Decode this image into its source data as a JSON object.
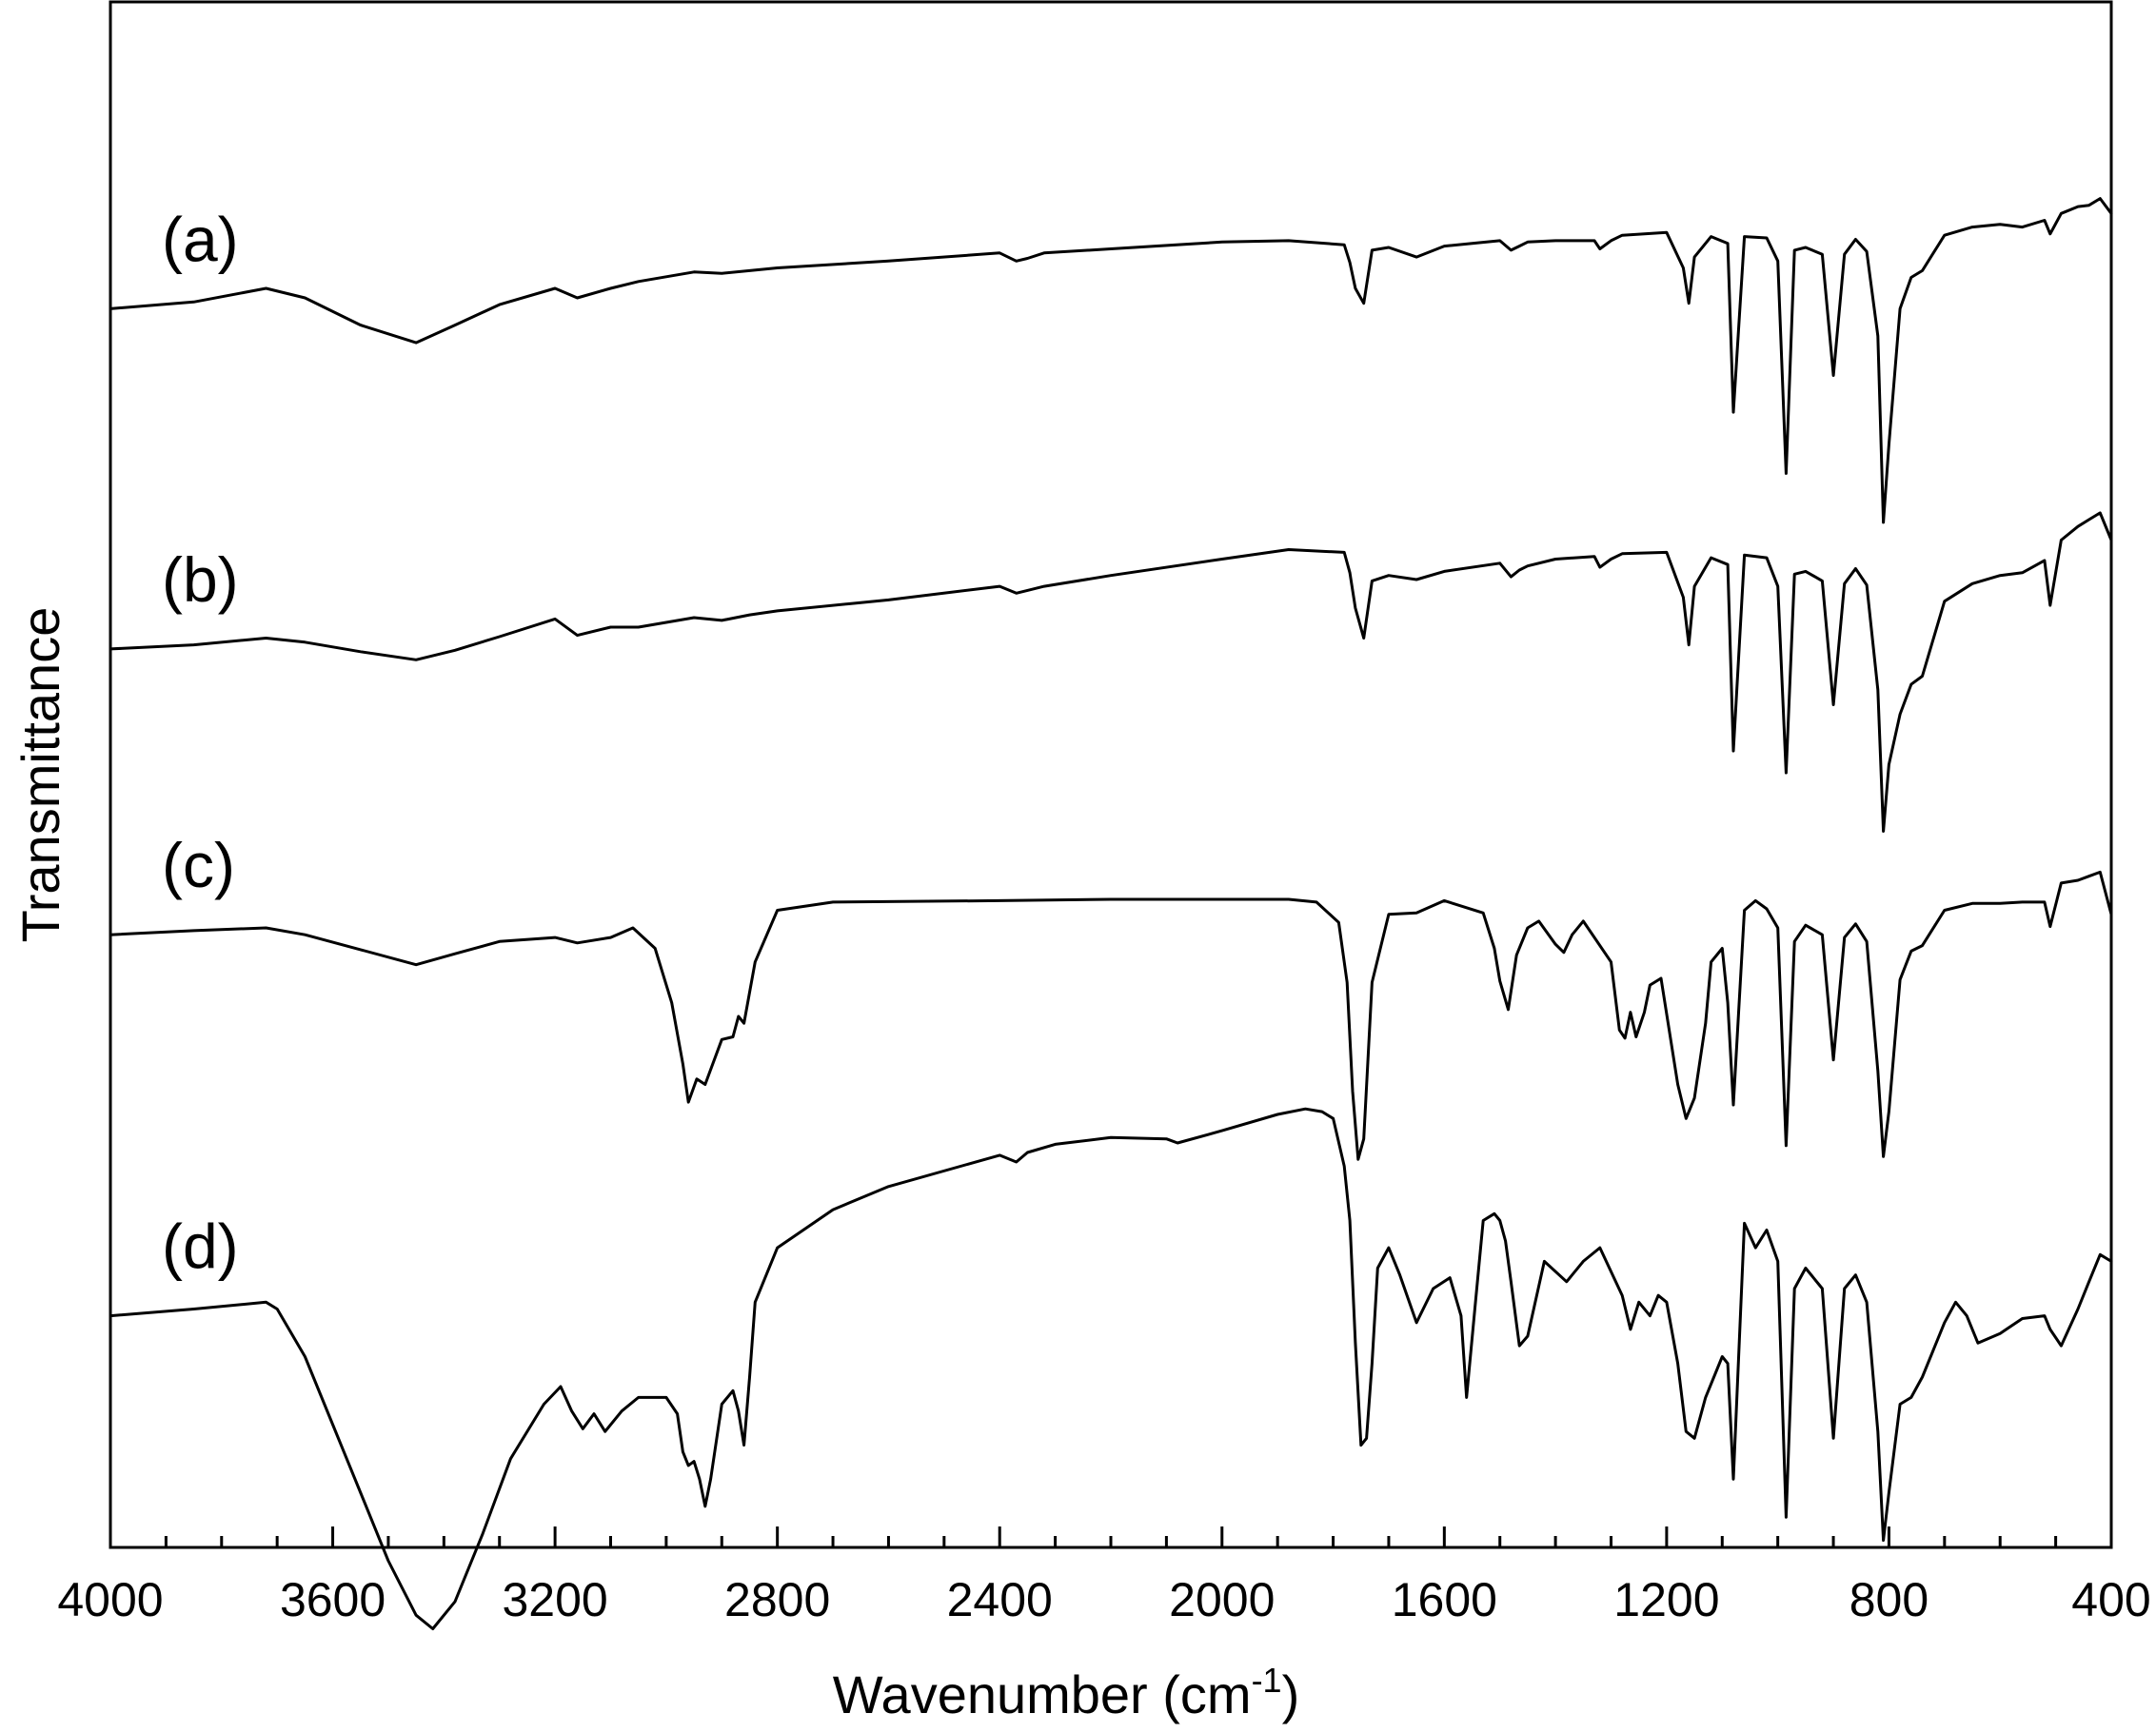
{
  "chart_data": {
    "type": "line",
    "xlabel": "Wavenumber (cm",
    "xlabel_superscript": "-1",
    "xlabel_suffix": ")",
    "ylabel": "Transmittance",
    "xlim": [
      4000,
      400
    ],
    "x_reversed": true,
    "y_ticks_shown": false,
    "grid": false,
    "legend": "none",
    "x_ticks": [
      4000,
      3600,
      3200,
      2800,
      2400,
      2000,
      1600,
      1200,
      800,
      400
    ],
    "x_tick_labels": [
      "4000",
      "3600",
      "3200",
      "2800",
      "2400",
      "2000",
      "1600",
      "1200",
      "800",
      "400"
    ],
    "x_minor_tick_step": 100,
    "line_color": "#000000",
    "series": [
      {
        "name": "(a)",
        "x": [
          4000,
          3850,
          3720,
          3650,
          3550,
          3450,
          3380,
          3300,
          3200,
          3160,
          3100,
          3050,
          2950,
          2900,
          2850,
          2800,
          2600,
          2400,
          2370,
          2350,
          2320,
          2200,
          2000,
          1880,
          1780,
          1770,
          1760,
          1745,
          1730,
          1700,
          1650,
          1600,
          1500,
          1480,
          1465,
          1450,
          1400,
          1330,
          1320,
          1300,
          1280,
          1200,
          1170,
          1160,
          1150,
          1120,
          1090,
          1080,
          1060,
          1020,
          1000,
          985,
          970,
          950,
          920,
          900,
          880,
          860,
          840,
          820,
          810,
          800,
          780,
          760,
          740,
          700,
          650,
          600,
          560,
          520,
          510,
          490,
          460,
          440,
          420,
          400
        ],
        "y": [
          82.0,
          82.5,
          83.5,
          82.8,
          80.8,
          79.5,
          80.8,
          82.3,
          83.5,
          82.8,
          83.5,
          84.0,
          84.7,
          84.6,
          84.8,
          85.0,
          85.5,
          86.1,
          85.5,
          85.7,
          86.1,
          86.4,
          86.9,
          87.0,
          86.7,
          85.4,
          83.5,
          82.4,
          86.3,
          86.5,
          85.8,
          86.6,
          87.0,
          86.3,
          86.6,
          86.9,
          87.0,
          87.0,
          86.4,
          87.0,
          87.4,
          87.6,
          85.0,
          82.4,
          85.8,
          87.3,
          86.8,
          74.4,
          87.3,
          87.2,
          85.5,
          69.9,
          86.3,
          86.5,
          86.0,
          77.1,
          86.0,
          87.1,
          86.2,
          80.0,
          66.3,
          72.0,
          82.0,
          84.3,
          84.8,
          87.4,
          88.0,
          88.2,
          88.0,
          88.5,
          87.5,
          89.0,
          89.5,
          89.6,
          90.1,
          89.0
        ]
      },
      {
        "name": "(b)",
        "x": [
          4000,
          3850,
          3720,
          3650,
          3550,
          3450,
          3380,
          3300,
          3200,
          3160,
          3100,
          3050,
          2950,
          2900,
          2850,
          2800,
          2600,
          2400,
          2370,
          2350,
          2320,
          2200,
          2000,
          1880,
          1780,
          1770,
          1760,
          1745,
          1730,
          1700,
          1650,
          1600,
          1500,
          1480,
          1465,
          1450,
          1400,
          1330,
          1320,
          1300,
          1280,
          1200,
          1170,
          1160,
          1150,
          1120,
          1090,
          1080,
          1060,
          1020,
          1000,
          985,
          970,
          950,
          920,
          900,
          880,
          860,
          840,
          820,
          810,
          800,
          780,
          760,
          740,
          700,
          650,
          600,
          560,
          520,
          510,
          490,
          460,
          440,
          420,
          400
        ],
        "y": [
          57.0,
          57.3,
          57.8,
          57.5,
          56.8,
          56.2,
          56.9,
          57.9,
          59.2,
          58.0,
          58.6,
          58.6,
          59.3,
          59.1,
          59.5,
          59.8,
          60.6,
          61.6,
          61.1,
          61.3,
          61.6,
          62.4,
          63.6,
          64.3,
          64.1,
          62.6,
          60.0,
          57.8,
          62.0,
          62.4,
          62.1,
          62.7,
          63.3,
          62.3,
          62.8,
          63.1,
          63.6,
          63.8,
          63.0,
          63.6,
          64.0,
          64.1,
          60.8,
          57.3,
          61.6,
          63.7,
          63.2,
          49.5,
          63.9,
          63.7,
          61.6,
          47.9,
          62.5,
          62.7,
          62.0,
          52.9,
          61.8,
          62.9,
          61.7,
          54.0,
          43.6,
          48.5,
          52.2,
          54.4,
          55.0,
          60.5,
          61.8,
          62.4,
          62.6,
          63.5,
          60.2,
          65.0,
          66.0,
          66.5,
          67.0,
          65.0
        ]
      },
      {
        "name": "(c)",
        "x": [
          4000,
          3850,
          3720,
          3650,
          3550,
          3450,
          3380,
          3300,
          3200,
          3160,
          3100,
          3060,
          3020,
          2990,
          2970,
          2960,
          2945,
          2930,
          2900,
          2880,
          2870,
          2860,
          2840,
          2800,
          2700,
          2400,
          2200,
          2000,
          1880,
          1830,
          1790,
          1775,
          1765,
          1755,
          1745,
          1730,
          1700,
          1650,
          1600,
          1530,
          1510,
          1500,
          1485,
          1470,
          1450,
          1430,
          1400,
          1385,
          1370,
          1350,
          1300,
          1285,
          1275,
          1265,
          1255,
          1240,
          1230,
          1210,
          1180,
          1165,
          1150,
          1130,
          1120,
          1100,
          1090,
          1080,
          1060,
          1040,
          1020,
          1000,
          985,
          970,
          950,
          920,
          900,
          880,
          860,
          840,
          820,
          810,
          800,
          780,
          760,
          740,
          700,
          650,
          600,
          560,
          520,
          510,
          490,
          460,
          440,
          420,
          400
        ],
        "y": [
          36.0,
          36.3,
          36.5,
          36.0,
          34.9,
          33.8,
          34.6,
          35.5,
          35.8,
          35.4,
          35.8,
          36.5,
          35.0,
          31.0,
          26.5,
          23.7,
          25.4,
          25.0,
          28.3,
          28.5,
          30.0,
          29.5,
          34.0,
          37.8,
          38.4,
          38.5,
          38.6,
          38.6,
          38.6,
          38.4,
          36.9,
          32.5,
          24.5,
          19.5,
          21.0,
          32.5,
          37.5,
          37.6,
          38.5,
          37.6,
          35.0,
          32.6,
          30.5,
          34.5,
          36.5,
          37.0,
          35.3,
          34.7,
          36.0,
          37.0,
          34.0,
          29.0,
          28.4,
          30.3,
          28.5,
          30.3,
          32.3,
          32.8,
          25.0,
          22.5,
          24.0,
          29.5,
          34.0,
          35.0,
          31.0,
          23.5,
          37.8,
          38.5,
          37.9,
          36.5,
          20.5,
          35.5,
          36.7,
          36.0,
          26.8,
          35.8,
          36.8,
          35.5,
          26.0,
          19.7,
          23.0,
          32.7,
          34.8,
          35.2,
          37.8,
          38.3,
          38.3,
          38.4,
          38.4,
          36.6,
          39.8,
          40.0,
          40.3,
          40.6,
          37.5
        ]
      },
      {
        "name": "(d)",
        "x": [
          4000,
          3850,
          3720,
          3700,
          3650,
          3600,
          3550,
          3500,
          3450,
          3420,
          3380,
          3330,
          3280,
          3220,
          3190,
          3170,
          3150,
          3130,
          3110,
          3080,
          3050,
          3000,
          2980,
          2970,
          2960,
          2950,
          2940,
          2930,
          2920,
          2900,
          2880,
          2870,
          2860,
          2850,
          2840,
          2800,
          2700,
          2600,
          2400,
          2370,
          2350,
          2300,
          2200,
          2100,
          2080,
          2000,
          1900,
          1850,
          1820,
          1800,
          1780,
          1770,
          1760,
          1750,
          1740,
          1730,
          1720,
          1700,
          1680,
          1650,
          1620,
          1590,
          1570,
          1560,
          1545,
          1530,
          1510,
          1500,
          1490,
          1480,
          1465,
          1450,
          1420,
          1380,
          1350,
          1320,
          1280,
          1265,
          1250,
          1230,
          1215,
          1200,
          1180,
          1165,
          1150,
          1130,
          1100,
          1090,
          1080,
          1060,
          1040,
          1020,
          1000,
          985,
          970,
          950,
          920,
          900,
          880,
          860,
          840,
          820,
          810,
          800,
          780,
          760,
          740,
          700,
          680,
          660,
          640,
          600,
          560,
          520,
          510,
          490,
          460,
          440,
          420,
          400
        ],
        "y": [
          8.0,
          8.5,
          9.0,
          8.5,
          5.0,
          0.0,
          -5.0,
          -10.0,
          -14.0,
          -15.0,
          -13.0,
          -8.0,
          -2.5,
          1.5,
          2.8,
          1.0,
          -0.3,
          0.8,
          -0.5,
          1.0,
          2.0,
          2.0,
          0.8,
          -2.0,
          -3.0,
          -2.7,
          -4.0,
          -6.0,
          -4.0,
          1.5,
          2.5,
          1.0,
          -1.5,
          3.5,
          9.0,
          13.0,
          15.8,
          17.5,
          19.8,
          19.3,
          20.0,
          20.6,
          21.1,
          21.0,
          20.7,
          21.6,
          22.8,
          23.2,
          23.0,
          22.5,
          19.0,
          15.0,
          6.0,
          -1.5,
          -1.0,
          4.5,
          11.5,
          13.0,
          11.0,
          7.5,
          10.0,
          10.8,
          8.0,
          2.0,
          8.5,
          15.0,
          15.5,
          15.0,
          13.5,
          10.5,
          5.8,
          6.5,
          12.0,
          10.5,
          12.0,
          13.0,
          9.5,
          7.0,
          9.0,
          8.0,
          9.5,
          9.0,
          4.5,
          -0.5,
          -1.0,
          2.0,
          5.0,
          4.5,
          -4.0,
          14.8,
          13.0,
          14.3,
          12.0,
          -6.8,
          10.0,
          11.5,
          10.0,
          -1.0,
          10.0,
          11.0,
          9.0,
          -0.5,
          -8.5,
          -5.0,
          1.5,
          2.0,
          3.5,
          7.5,
          9.0,
          8.0,
          6.0,
          6.7,
          7.8,
          8.0,
          7.0,
          5.8,
          8.5,
          10.5,
          12.5,
          12.0
        ]
      }
    ]
  }
}
